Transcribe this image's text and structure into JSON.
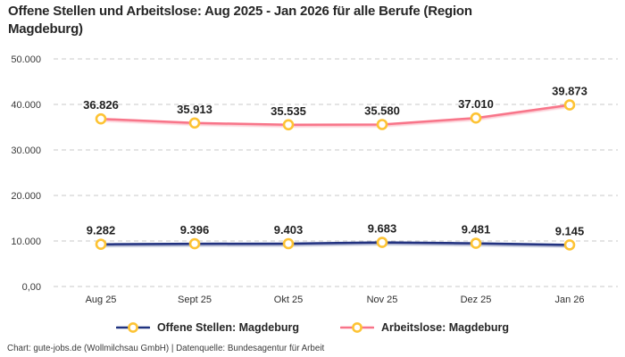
{
  "title": "Offene Stellen und Arbeitslose: Aug 2025 - Jan 2026 für alle Berufe (Region Magdeburg)",
  "footer": "Chart: gute-jobs.de (Wollmilchsau GmbH) | Datenquelle: Bundesagentur für Arbeit",
  "colors": {
    "grid": "#c9c9c9",
    "axis_label": "#3a3a3a",
    "data_label": "#1f1f1f",
    "marker_fill": "#ffffff",
    "marker_ring": "#fdc334",
    "series_open_positions": "#203380",
    "series_unemployed": "#f87489"
  },
  "chart_data": {
    "type": "line",
    "categories": [
      "Aug 25",
      "Sept 25",
      "Okt 25",
      "Nov 25",
      "Dez 25",
      "Jan 26"
    ],
    "series": [
      {
        "name": "Offene Stellen: Magdeburg",
        "key": "offene-stellen",
        "color": "#203380",
        "values": [
          9282,
          9396,
          9403,
          9683,
          9481,
          9145
        ],
        "labels": [
          "9.282",
          "9.396",
          "9.403",
          "9.683",
          "9.481",
          "9.145"
        ]
      },
      {
        "name": "Arbeitslose: Magdeburg",
        "key": "arbeitslose",
        "color": "#f87489",
        "values": [
          36826,
          35913,
          35535,
          35580,
          37010,
          39873
        ],
        "labels": [
          "36.826",
          "35.913",
          "35.535",
          "35.580",
          "37.010",
          "39.873"
        ]
      }
    ],
    "y_ticks": [
      {
        "value": 0,
        "label": "0,00"
      },
      {
        "value": 10000,
        "label": "10.000"
      },
      {
        "value": 20000,
        "label": "20.000"
      },
      {
        "value": 30000,
        "label": "30.000"
      },
      {
        "value": 40000,
        "label": "40.000"
      },
      {
        "value": 50000,
        "label": "50.000"
      }
    ],
    "ylim": [
      0,
      50000
    ],
    "grid": true,
    "grid_style": "dashed",
    "legend_position": "bottom",
    "marker_shape": "circle"
  }
}
